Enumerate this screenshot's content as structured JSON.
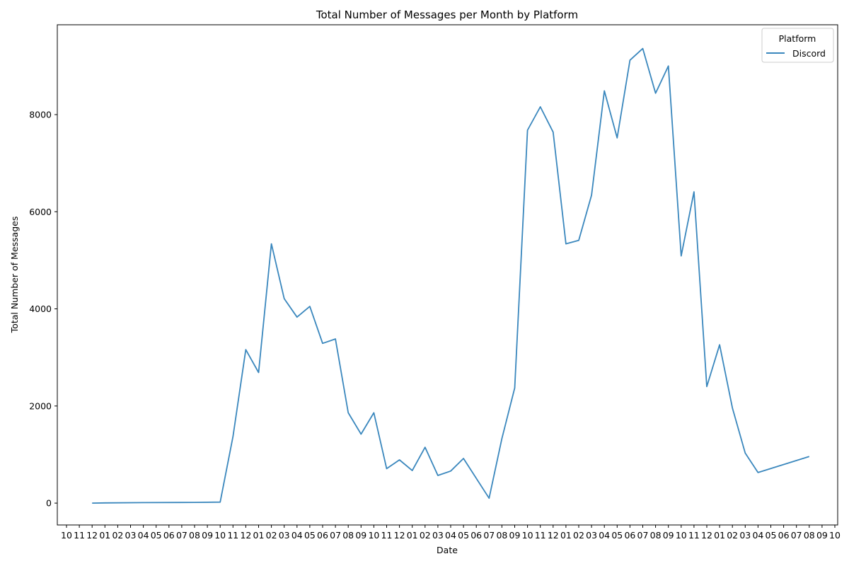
{
  "chart_data": {
    "type": "line",
    "title": "Total Number of Messages per Month by Platform",
    "xlabel": "Date",
    "ylabel": "Total Number of Messages",
    "ylim": [
      -450,
      9850
    ],
    "yticks": [
      0,
      2000,
      4000,
      6000,
      8000
    ],
    "x_tick_labels": [
      "10",
      "11",
      "12",
      "01",
      "02",
      "03",
      "04",
      "05",
      "06",
      "07",
      "08",
      "09",
      "10",
      "11",
      "12",
      "01",
      "02",
      "03",
      "04",
      "05",
      "06",
      "07",
      "08",
      "09",
      "10",
      "11",
      "12",
      "01",
      "02",
      "03",
      "04",
      "05",
      "06",
      "07",
      "08",
      "09",
      "10",
      "11",
      "12",
      "01",
      "02",
      "03",
      "04",
      "05",
      "06",
      "07",
      "08",
      "09",
      "10",
      "11",
      "12",
      "01",
      "02",
      "03",
      "04",
      "05",
      "06",
      "07",
      "08",
      "09",
      "10"
    ],
    "grid": false,
    "legend": {
      "title": "Platform",
      "placement": "top-right"
    },
    "series": [
      {
        "name": "Discord",
        "color": "#3a87bd",
        "start_tick_index": 2,
        "values": [
          0,
          5,
          10,
          15,
          20,
          1370,
          3160,
          2690,
          5340,
          4210,
          3830,
          4050,
          3290,
          3380,
          1860,
          1420,
          1860,
          710,
          890,
          670,
          1150,
          570,
          660,
          920,
          100,
          1330,
          2370,
          7680,
          8160,
          7640,
          5340,
          5410,
          6340,
          8490,
          7520,
          9120,
          9360,
          8440,
          9000,
          5090,
          6410,
          2400,
          3260,
          1960,
          1030,
          630,
          960
        ],
        "points_tick_index": [
          2,
          3,
          6,
          10,
          12,
          13,
          14,
          15,
          16,
          17,
          18,
          19,
          20,
          21,
          22,
          23,
          24,
          25,
          26,
          27,
          28,
          29,
          30,
          31,
          33,
          34,
          35,
          36,
          37,
          38,
          39,
          40,
          41,
          42,
          43,
          44,
          45,
          46,
          47,
          48,
          49,
          50,
          51,
          52,
          53,
          54,
          58
        ]
      }
    ]
  }
}
